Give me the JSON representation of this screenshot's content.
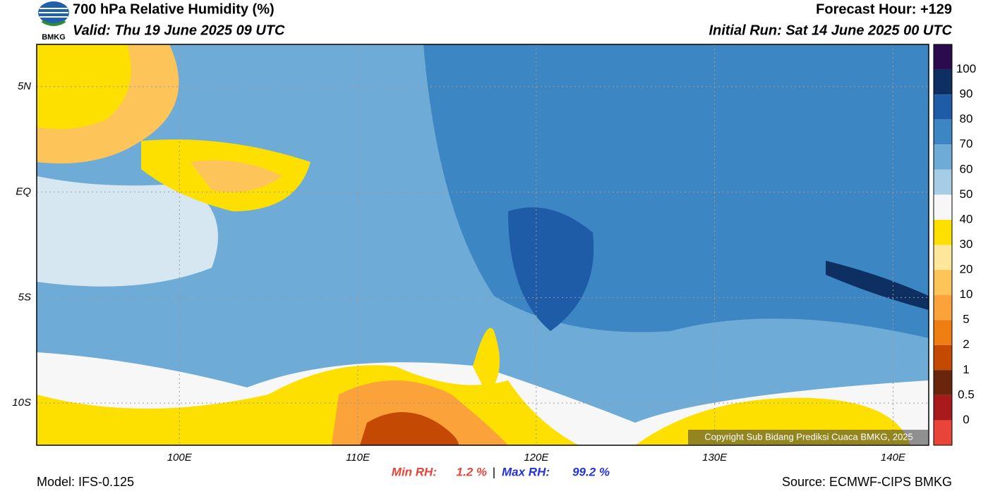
{
  "header": {
    "title": "700 hPa Relative Humidity (%)",
    "valid": "Valid: Thu 19 June 2025 09 UTC",
    "forecast_hour": "Forecast Hour: +129",
    "initial_run": "Initial Run: Sat 14 June 2025 00 UTC",
    "logo": "BMKG"
  },
  "map": {
    "lonlim": [
      92,
      142
    ],
    "latlim": [
      -12,
      7
    ],
    "lat_ticks": [
      {
        "value": 5,
        "label": "5N"
      },
      {
        "value": 0,
        "label": "EQ"
      },
      {
        "value": -5,
        "label": "5S"
      },
      {
        "value": -10,
        "label": "10S"
      }
    ],
    "lon_ticks": [
      {
        "value": 100,
        "label": "100E"
      },
      {
        "value": 110,
        "label": "110E"
      },
      {
        "value": 120,
        "label": "120E"
      },
      {
        "value": 130,
        "label": "130E"
      },
      {
        "value": 140,
        "label": "140E"
      }
    ],
    "copyright": "Copyright Sub Bidang Prediksi Cuaca BMKG, 2025"
  },
  "colorbar": {
    "levels": [
      "100",
      "90",
      "80",
      "70",
      "60",
      "50",
      "40",
      "30",
      "20",
      "10",
      "5",
      "2",
      "1",
      "0.5",
      "0"
    ],
    "colors": [
      "#2b0a4d",
      "#0d2f62",
      "#1f5ca8",
      "#3c86c4",
      "#6eabd6",
      "#a6cde5",
      "#f7f7f7",
      "#fde000",
      "#fee69a",
      "#fdc45a",
      "#fba33a",
      "#ee7d12",
      "#c44a04",
      "#6a260c",
      "#a81a1c",
      "#e8443a"
    ]
  },
  "stats": {
    "min_label": "Min RH:",
    "min_value": "1.2 %",
    "separator": "|",
    "max_label": "Max RH:",
    "max_value": "99.2 %"
  },
  "footer": {
    "model": "Model: IFS-0.125",
    "source": "Source: ECMWF-CIPS BMKG"
  }
}
